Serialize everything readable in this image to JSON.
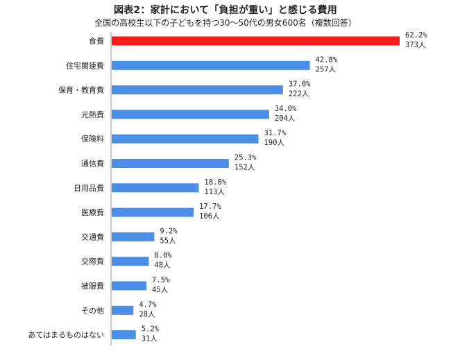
{
  "header": {
    "title": "図表2：家計において「負担が重い」と感じる費用",
    "subtitle": "全国の高校生以下の子どもを持つ30〜50代の男女600名（複数回答）"
  },
  "chart_data": {
    "type": "bar",
    "orientation": "horizontal",
    "title": "図表2：家計において「負担が重い」と感じる費用",
    "subtitle": "全国の高校生以下の子どもを持つ30〜50代の男女600名（複数回答）",
    "categories": [
      "食費",
      "住宅関連費",
      "保育・教育費",
      "光熱費",
      "保険料",
      "通信費",
      "日用品費",
      "医療費",
      "交通費",
      "交際費",
      "被服費",
      "その他",
      "あてはまるものはない"
    ],
    "values": [
      62.2,
      42.8,
      37.0,
      34.0,
      31.7,
      25.3,
      18.8,
      17.7,
      9.2,
      8.0,
      7.5,
      4.7,
      5.2
    ],
    "value_labels": [
      "62.2%",
      "42.8%",
      "37.0%",
      "34.0%",
      "31.7%",
      "25.3%",
      "18.8%",
      "17.7%",
      "9.2%",
      "8.0%",
      "7.5%",
      "4.7%",
      "5.2%"
    ],
    "counts": [
      "373人",
      "257人",
      "222人",
      "204人",
      "190人",
      "152人",
      "113人",
      "106人",
      "55人",
      "48人",
      "45人",
      "28人",
      "31人"
    ],
    "unit": "%",
    "xlim": [
      0,
      62.2
    ],
    "grid": false,
    "legend": "none",
    "colors": {
      "highlight": "#ff1a1a",
      "default": "#4a8ee8"
    }
  }
}
